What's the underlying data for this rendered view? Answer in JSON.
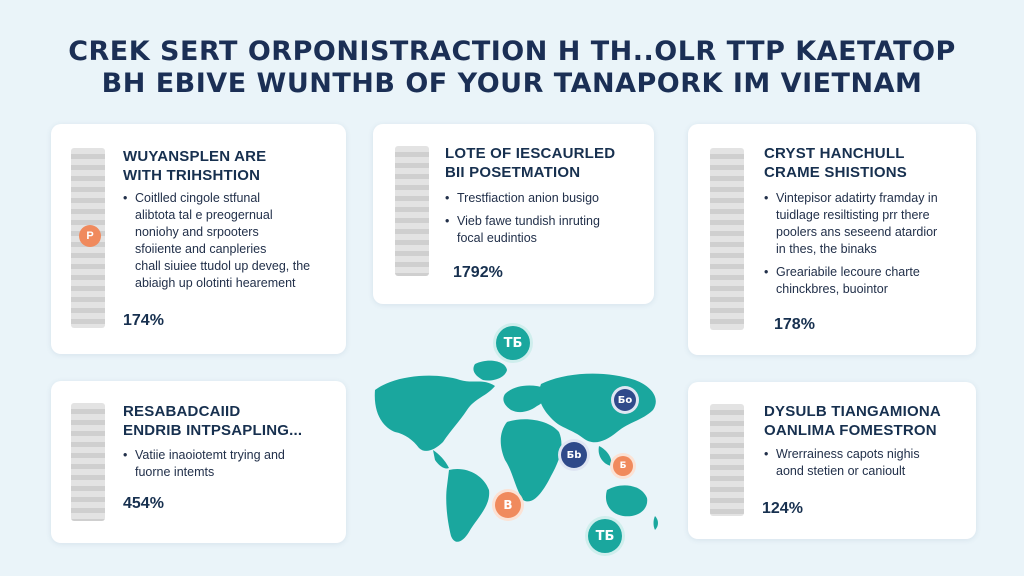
{
  "header": {
    "title_line1": "CREK SERT ORPONISTRACTION H TH..OLR TTP KAETATOP",
    "title_line2": "BH EBIVE WUNTHB OF YOUR TANAPORK IM VIETNAM"
  },
  "cards": [
    {
      "title": [
        "WUYANSPLEN ARE",
        "WITH TRIHSHTION"
      ],
      "bullets": [
        [
          "Coitlled cingole stfunal",
          "alibtota tal e preogernual",
          "noniohy and srpooters",
          "sfoiiente and canpleries",
          "chall siuiee ttudol up deveg, the",
          "abiaigh up olotinti hearement"
        ]
      ],
      "badge": "P",
      "stat": "174%"
    },
    {
      "title": [
        "LOTE OF IESCAURLED",
        "BII POSETMATION"
      ],
      "bullets": [
        [
          "Trestfiaction anion busigo"
        ],
        [
          "Vieb fawe tundish inruting",
          "focal eudintios"
        ]
      ],
      "stat": "1792%"
    },
    {
      "title": [
        "CRYST HANCHULL",
        "CRAME SHISTIONS"
      ],
      "bullets": [
        [
          "Vintepisor adatirty framday in",
          "tuidlage resiltisting prr there",
          "poolers ans seseend atardior",
          "in thes, the binaks"
        ],
        [
          "Greariabile lecoure charte",
          "chinckbres, buointor"
        ]
      ],
      "stat": "178%"
    },
    {
      "title": [
        "RESABADCAIID",
        "ENDRIB INTPSAPLING..."
      ],
      "bullets": [
        [
          "Vatiie inaoiotemt trying and",
          "fuorne intemts"
        ]
      ],
      "stat": "454%"
    },
    {
      "title": [
        "DYSULB TIANGAMIONA",
        "OANLIMA FOMESTRON"
      ],
      "bullets": [
        [
          "Wrerrainess capots nighis",
          "aond stetien or canioult"
        ]
      ],
      "stat": "124%"
    }
  ],
  "map": {
    "pins": [
      {
        "label": "ТБ",
        "color": "teal"
      },
      {
        "label": "Бо",
        "color": "navy"
      },
      {
        "label": "Бb",
        "color": "navy"
      },
      {
        "label": "Б",
        "color": "orange"
      },
      {
        "label": "B",
        "color": "orange"
      },
      {
        "label": "ТБ",
        "color": "teal"
      }
    ]
  },
  "colors": {
    "background": "#eaf4f9",
    "map_teal": "#1aa79e",
    "accent_orange": "#f08a5d",
    "navy": "#2f4a8a",
    "title": "#1b2f55"
  }
}
